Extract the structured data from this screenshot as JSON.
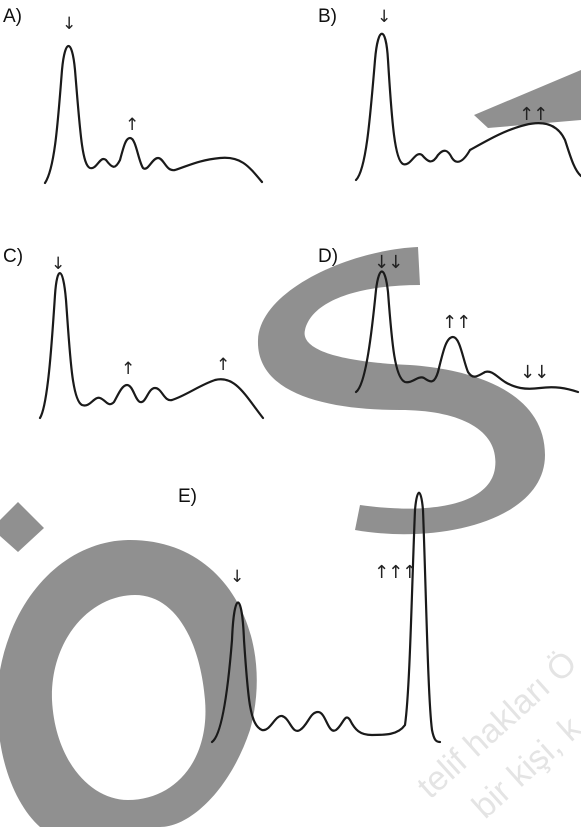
{
  "panels": [
    {
      "label": "A)",
      "arrows": [
        "↓",
        "↑"
      ]
    },
    {
      "label": "B)",
      "arrows": [
        "↓",
        "↑↑"
      ]
    },
    {
      "label": "C)",
      "arrows": [
        "↓",
        "↑",
        "↑"
      ]
    },
    {
      "label": "D)",
      "arrows": [
        "↓↓",
        "↑↑",
        "↓↓"
      ]
    },
    {
      "label": "E)",
      "arrows": [
        "↓",
        "↑↑↑"
      ]
    }
  ],
  "watermark": {
    "line1": "telif hakları Ö",
    "line2": "bir kişi, k",
    "color": "#8a8a8a"
  }
}
